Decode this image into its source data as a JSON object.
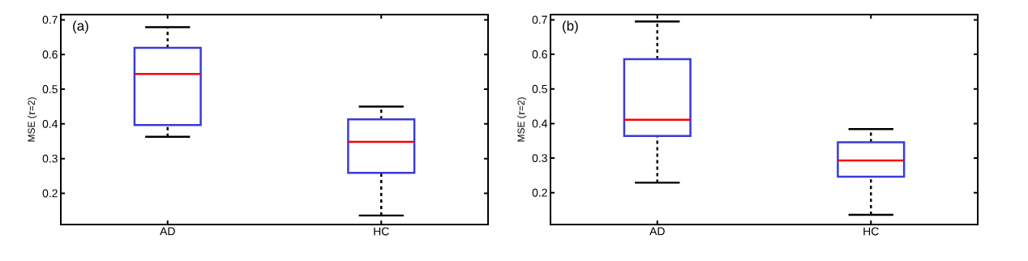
{
  "chart_data": [
    {
      "type": "box",
      "ylabel": "MSE (*τ*=2)",
      "annotations": [
        "(a)"
      ],
      "categories": [
        "AD",
        "HC"
      ],
      "color": "#3a3ad8",
      "boxes": [
        {
          "low": 0.363,
          "q1": 0.397,
          "median": 0.544,
          "q3": 0.619,
          "high": 0.679
        },
        {
          "low": 0.136,
          "q1": 0.259,
          "median": 0.348,
          "q3": 0.413,
          "high": 0.45
        }
      ],
      "ylim": [
        0.11,
        0.715
      ],
      "yticks": [
        0.2,
        0.3,
        0.4,
        0.5,
        0.6,
        0.7
      ]
    },
    {
      "type": "box",
      "ylabel": "MSE (*τ*=2)",
      "annotations": [
        "(b)"
      ],
      "categories": [
        "AD",
        "HC"
      ],
      "color": "#3a3ad8",
      "boxes": [
        {
          "low": 0.229,
          "q1": 0.364,
          "median": 0.411,
          "q3": 0.586,
          "high": 0.695
        },
        {
          "low": 0.136,
          "q1": 0.246,
          "median": 0.293,
          "q3": 0.346,
          "high": 0.384
        }
      ],
      "ylim": [
        0.108,
        0.715
      ],
      "yticks": [
        0.2,
        0.3,
        0.4,
        0.5,
        0.6,
        0.7
      ]
    }
  ]
}
